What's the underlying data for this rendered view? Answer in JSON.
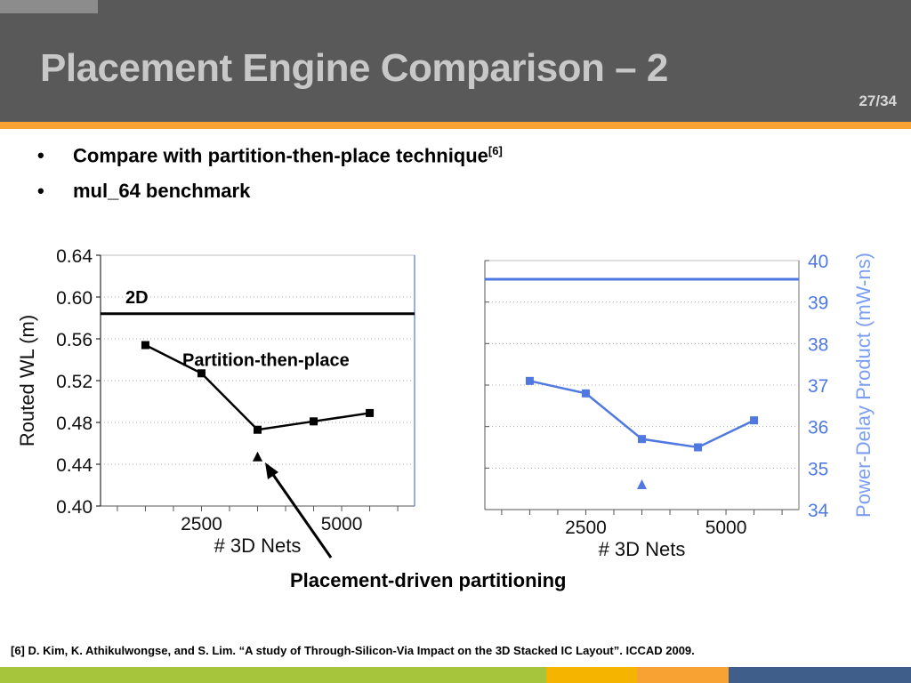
{
  "slide": {
    "title": "Placement Engine Comparison – 2",
    "page": "27/34",
    "bullets": [
      {
        "text": "Compare with partition-then-place technique",
        "sup": "[6]"
      },
      {
        "text": "mul_64 benchmark",
        "sup": ""
      }
    ],
    "callout": "Placement-driven partitioning",
    "reference": "[6] D. Kim, K. Athikulwongse, and S. Lim. “A study of Through-Silicon-Via Impact on the 3D Stacked IC Layout”. ICCAD 2009.",
    "colors": {
      "header": "#595959",
      "title": "#c8c8c8",
      "accent": "#f7a233",
      "footer": [
        "#a6c53c",
        "#f4b400",
        "#f7a233",
        "#3f5f8a"
      ]
    }
  },
  "chart_data": [
    {
      "type": "line",
      "xlabel": "# 3D Nets",
      "ylabel": "Routed WL (m)",
      "xlim": [
        700,
        6300
      ],
      "ylim": [
        0.4,
        0.64
      ],
      "xticks": [
        2500,
        5000
      ],
      "yticks": [
        0.4,
        0.44,
        0.48,
        0.52,
        0.56,
        0.6,
        0.64
      ],
      "yticklabels": [
        "0.40",
        "0.44",
        "0.48",
        "0.52",
        "0.56",
        "0.60",
        "0.64"
      ],
      "grid": "horizontal dotted",
      "line_color": "#000000",
      "reference_line": {
        "label": "2D",
        "y": 0.584
      },
      "series": [
        {
          "name": "Partition-then-place",
          "marker": "square",
          "x": [
            1500,
            2500,
            3500,
            4500,
            5500
          ],
          "y": [
            0.554,
            0.527,
            0.473,
            0.481,
            0.489
          ]
        }
      ],
      "points": [
        {
          "x": 3500,
          "y": 0.447,
          "marker": "triangle"
        }
      ]
    },
    {
      "type": "line",
      "xlabel": "# 3D Nets",
      "ylabel": "Power-Delay Product (mW-ns)",
      "y_axis_side": "right",
      "xlim": [
        700,
        6300
      ],
      "ylim": [
        34,
        40
      ],
      "xticks": [
        2500,
        5000
      ],
      "yticks": [
        34,
        35,
        36,
        37,
        38,
        39,
        40
      ],
      "yticklabels": [
        "34",
        "35",
        "36",
        "37",
        "38",
        "39",
        "40"
      ],
      "grid": "horizontal dotted",
      "line_color": "#4f79e0",
      "reference_line": {
        "label": "",
        "y": 39.55
      },
      "series": [
        {
          "name": "",
          "marker": "square",
          "x": [
            1500,
            2500,
            3500,
            4500,
            5500
          ],
          "y": [
            37.1,
            36.8,
            35.7,
            35.5,
            36.15
          ]
        }
      ],
      "points": [
        {
          "x": 3500,
          "y": 34.6,
          "marker": "triangle"
        }
      ]
    }
  ]
}
